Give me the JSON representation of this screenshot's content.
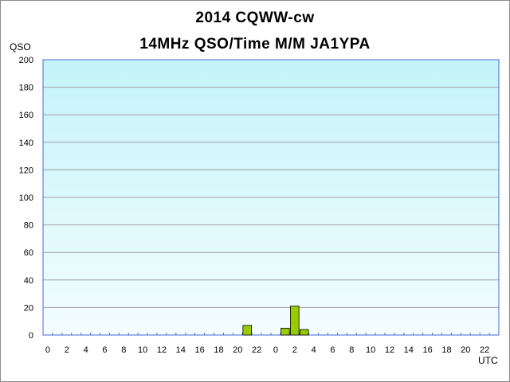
{
  "chart_data": {
    "type": "bar",
    "title": "2014  CQWW-cw",
    "subtitle": "14MHz QSO/Time  M/M JA1YPA",
    "ylabel": "QSO",
    "xlabel": "UTC",
    "ylim": [
      0,
      200
    ],
    "yticks": [
      0,
      20,
      40,
      60,
      80,
      100,
      120,
      140,
      160,
      180,
      200
    ],
    "x_tick_labels": [
      "0",
      "2",
      "4",
      "6",
      "8",
      "10",
      "12",
      "14",
      "16",
      "18",
      "20",
      "22",
      "0",
      "2",
      "4",
      "6",
      "8",
      "10",
      "12",
      "14",
      "16",
      "18",
      "20",
      "22"
    ],
    "categories": [
      "0",
      "1",
      "2",
      "3",
      "4",
      "5",
      "6",
      "7",
      "8",
      "9",
      "10",
      "11",
      "12",
      "13",
      "14",
      "15",
      "16",
      "17",
      "18",
      "19",
      "20",
      "21",
      "22",
      "23",
      "0",
      "1",
      "2",
      "3",
      "4",
      "5",
      "6",
      "7",
      "8",
      "9",
      "10",
      "11",
      "12",
      "13",
      "14",
      "15",
      "16",
      "17",
      "18",
      "19",
      "20",
      "21",
      "22",
      "23"
    ],
    "values": [
      0,
      0,
      0,
      0,
      0,
      0,
      0,
      0,
      0,
      0,
      0,
      0,
      0,
      0,
      0,
      0,
      0,
      0,
      0,
      0,
      0,
      7,
      0,
      0,
      0,
      5,
      21,
      4,
      0,
      0,
      0,
      0,
      0,
      0,
      0,
      0,
      0,
      0,
      0,
      0,
      0,
      0,
      0,
      0,
      0,
      0,
      0,
      0
    ],
    "grid": true,
    "colors": {
      "plot_bg_top": "#c4f4fa",
      "plot_bg_bottom": "#f4fdfe",
      "bar_fill": "#99cc00",
      "bar_stroke": "#000000",
      "grid": "#a0a0a0",
      "axis": "#4a6ad8"
    }
  }
}
